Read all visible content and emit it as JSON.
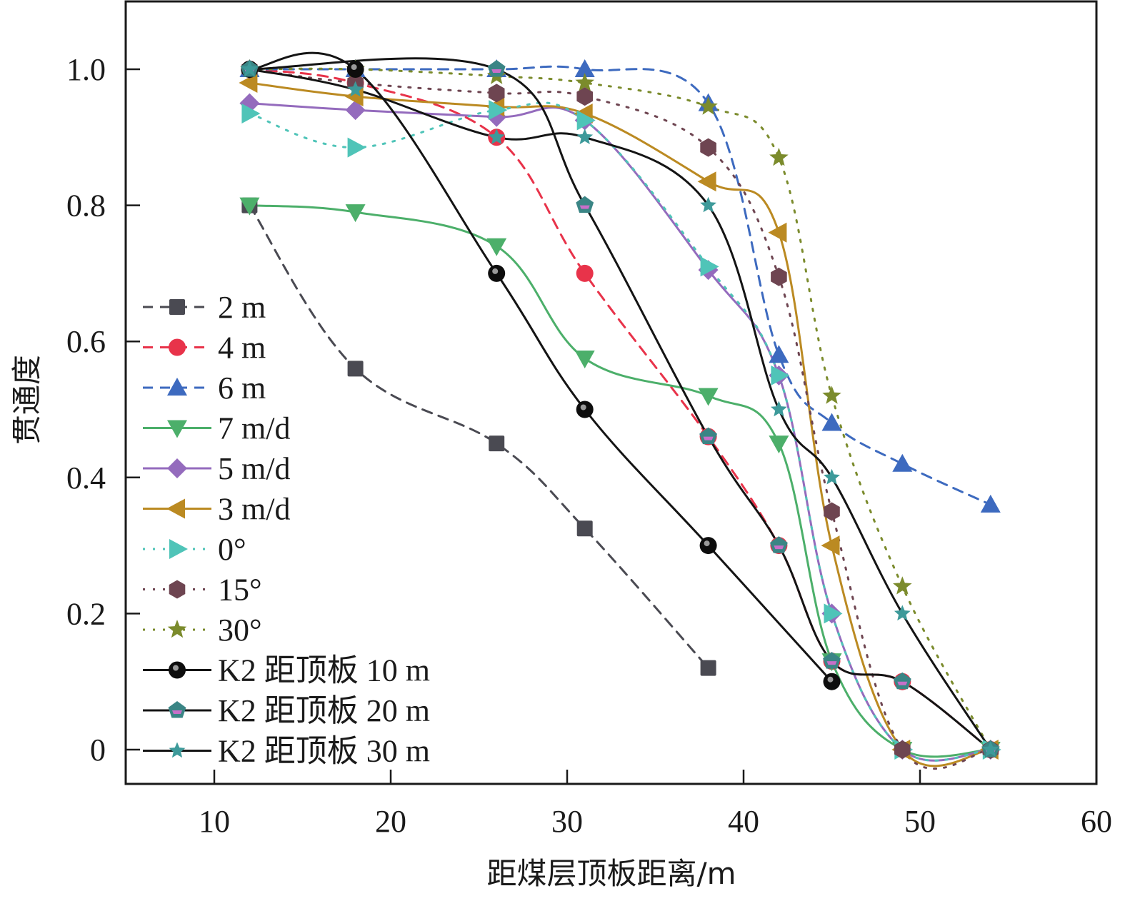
{
  "chart_data": {
    "type": "line",
    "title": "",
    "xlabel": "距煤层顶板距离/m",
    "ylabel": "贯通度",
    "xlim": [
      5,
      60
    ],
    "ylim": [
      -0.05,
      1.1
    ],
    "xticks": [
      10,
      20,
      30,
      40,
      50,
      60
    ],
    "xtick_labels": [
      "10",
      "20",
      "30",
      "40",
      "50",
      "60"
    ],
    "yticks": [
      0,
      0.2,
      0.4,
      0.6,
      0.8,
      1.0
    ],
    "ytick_labels": [
      "0",
      "0.2",
      "0.4",
      "0.6",
      "0.8",
      "1.0"
    ],
    "grid": false,
    "legend_position": "center-left",
    "series": [
      {
        "name": "2 m",
        "color": "#4a4a52",
        "line": "dashed",
        "marker": "square",
        "smooth": true,
        "x": [
          12,
          18,
          26,
          31,
          38
        ],
        "y": [
          0.8,
          0.56,
          0.45,
          0.325,
          0.12
        ]
      },
      {
        "name": "4 m",
        "color": "#e8334a",
        "line": "dashed",
        "marker": "circle",
        "smooth": true,
        "x": [
          12,
          18,
          26,
          31,
          38,
          42,
          45,
          49,
          54
        ],
        "y": [
          1.0,
          0.98,
          0.9,
          0.7,
          0.46,
          0.3,
          0.13,
          0.1,
          0.0
        ]
      },
      {
        "name": "6 m",
        "color": "#3d6abf",
        "line": "dashed",
        "marker": "triangle-up",
        "smooth": true,
        "x": [
          12,
          18,
          26,
          31,
          38,
          42,
          45,
          49,
          54
        ],
        "y": [
          1.0,
          1.0,
          1.0,
          1.0,
          0.95,
          0.58,
          0.48,
          0.42,
          0.36
        ]
      },
      {
        "name": "7 m/d",
        "color": "#4caf6a",
        "line": "solid",
        "marker": "triangle-down",
        "smooth": true,
        "x": [
          12,
          18,
          26,
          31,
          38,
          42,
          45,
          49,
          54
        ],
        "y": [
          0.8,
          0.79,
          0.74,
          0.575,
          0.52,
          0.45,
          0.13,
          0.0,
          0.0
        ]
      },
      {
        "name": "5 m/d",
        "color": "#946bbd",
        "line": "solid",
        "marker": "diamond",
        "smooth": true,
        "x": [
          12,
          18,
          26,
          31,
          38,
          42,
          45,
          49,
          54
        ],
        "y": [
          0.95,
          0.94,
          0.93,
          0.925,
          0.705,
          0.55,
          0.2,
          0.0,
          0.0
        ]
      },
      {
        "name": "3 m/d",
        "color": "#bb8a22",
        "line": "solid",
        "marker": "triangle-left",
        "smooth": true,
        "x": [
          12,
          18,
          26,
          31,
          38,
          42,
          45,
          49,
          54
        ],
        "y": [
          0.98,
          0.96,
          0.945,
          0.935,
          0.835,
          0.76,
          0.3,
          0.0,
          0.0
        ]
      },
      {
        "name": "0°",
        "color": "#4fc4b8",
        "line": "dotted",
        "marker": "triangle-right",
        "smooth": true,
        "x": [
          12,
          18,
          26,
          31,
          38,
          42,
          45,
          49,
          54
        ],
        "y": [
          0.935,
          0.885,
          0.94,
          0.925,
          0.71,
          0.55,
          0.2,
          0.0,
          0.0
        ]
      },
      {
        "name": "15°",
        "color": "#6e4551",
        "line": "dotted",
        "marker": "hexagon",
        "smooth": true,
        "x": [
          12,
          18,
          26,
          31,
          38,
          42,
          45,
          49,
          54
        ],
        "y": [
          1.0,
          0.98,
          0.965,
          0.96,
          0.885,
          0.695,
          0.35,
          0.0,
          0.0
        ]
      },
      {
        "name": "30°",
        "color": "#7b8b2c",
        "line": "dotted",
        "marker": "star",
        "smooth": true,
        "x": [
          12,
          18,
          26,
          31,
          38,
          42,
          45,
          49,
          54
        ],
        "y": [
          1.0,
          1.0,
          0.99,
          0.98,
          0.945,
          0.87,
          0.52,
          0.24,
          0.0
        ]
      },
      {
        "name": "K2 距顶板 10 m",
        "color": "#141414",
        "line": "solid",
        "marker": "ball",
        "smooth": true,
        "x": [
          12,
          18,
          26,
          31,
          38,
          45
        ],
        "y": [
          1.0,
          1.0,
          0.7,
          0.5,
          0.3,
          0.1
        ]
      },
      {
        "name": "K2 距顶板 20 m",
        "color": "#141414",
        "line": "solid",
        "marker": "pentagon",
        "smooth": true,
        "x": [
          12,
          26,
          31,
          38,
          42,
          45,
          49,
          54
        ],
        "y": [
          1.0,
          1.0,
          0.8,
          0.46,
          0.3,
          0.13,
          0.1,
          0.0
        ]
      },
      {
        "name": "K2 距顶板 30 m",
        "color": "#141414",
        "line": "solid",
        "marker": "small-star",
        "smooth": true,
        "x": [
          12,
          18,
          26,
          31,
          38,
          42,
          45,
          49,
          54
        ],
        "y": [
          1.0,
          0.97,
          0.9,
          0.9,
          0.8,
          0.5,
          0.4,
          0.2,
          0.0
        ]
      }
    ]
  }
}
